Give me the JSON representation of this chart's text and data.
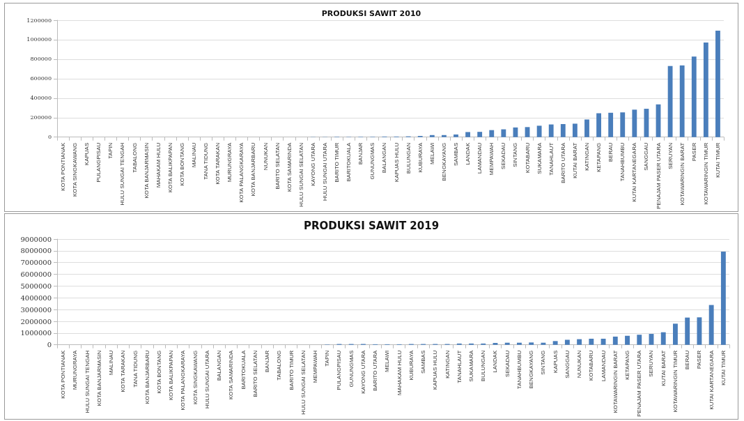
{
  "chart_data": [
    {
      "type": "bar",
      "title": "PRODUKSI SAWIT 2010",
      "categories": [
        "KOTA PONTIANAK",
        "KOTA SINGKAWANG",
        "KAPUAS",
        "PULANGPISAU",
        "TAPIN",
        "HULU SUNGAI TENGAH",
        "TABALONG",
        "KOTA BANJARMASIN",
        "MAHAKAM HULU",
        "KOTA BALIKPAPAN",
        "KOTA BONTANG",
        "MALINAU",
        "TANA TIDUNG",
        "KOTA TARAKAN",
        "MURUNGRAYA",
        "KOTA PALANGKARAYA",
        "KOTA BANJARBARU",
        "NUNUKAN",
        "BARITO SELATAN",
        "KOTA SAMARINDA",
        "HULU SUNGAI SELATAN",
        "KAYONG UTARA",
        "HULU SUNGAI UTARA",
        "BARITO TIMUR",
        "BARITOKUALA",
        "BANJAR",
        "GUNUNGMAS",
        "BALANGAN",
        "KAPUAS HULU",
        "BULUNGAN",
        "KUBURAYA",
        "MELAWI",
        "BENGKAYANG",
        "SAMBAS",
        "LANDAK",
        "LAMANDAU",
        "MEMPAWAH",
        "SEKADAU",
        "SINTANG",
        "KOTABARU",
        "SUKAMARA",
        "TANAHLAUT",
        "BARITO UTARA",
        "KUTAI BARAT",
        "KATINGAN",
        "KETAPANG",
        "BERAU",
        "TANAHBUMBU",
        "KUTAI KARTANEGARA",
        "SANGGAU",
        "PENAJAM PASER UTARA",
        "SERUYAN",
        "KOTAWARINGIN BARAT",
        "PASER",
        "KOTAWARINGIN TIMUR",
        "KUTAI TIMUR"
      ],
      "values": [
        0,
        0,
        0,
        0,
        0,
        0,
        0,
        0,
        0,
        0,
        0,
        0,
        0,
        0,
        0,
        0,
        0,
        0,
        0,
        0,
        0,
        2000,
        2000,
        4000,
        3000,
        4000,
        4000,
        6000,
        6000,
        8000,
        12000,
        21000,
        21000,
        27000,
        52000,
        54000,
        72000,
        80000,
        99000,
        103000,
        117000,
        130000,
        134000,
        138000,
        181000,
        245000,
        250000,
        254000,
        282000,
        291000,
        336000,
        730000,
        736000,
        827000,
        971000,
        1093000
      ],
      "color": "#4a7ebb",
      "ylim": [
        0,
        1200000
      ],
      "yticks": [
        0,
        200000,
        400000,
        600000,
        800000,
        1000000,
        1200000
      ],
      "grid": "y"
    },
    {
      "type": "bar",
      "title": "PRODUKSI SAWIT 2019",
      "categories": [
        "KOTA PONTIANAK",
        "MURUNGRAYA",
        "HULU SUNGAI TENGAH",
        "KOTA BANJARMASIN",
        "MALINAU",
        "KOTA TARAKAN",
        "TANA TIDUNG",
        "KOTA BANJARBARU",
        "KOTA BONTANG",
        "KOTA BALIKPAPAN",
        "KOTA PALANGKARAYA",
        "KOTA SINGKAWANG",
        "HULU SUNGAI UTARA",
        "BALANGAN",
        "KOTA SAMARINDA",
        "BARITOKUALA",
        "BARITO SELATAN",
        "BANJAR",
        "TABALONG",
        "BARITO TIMUR",
        "HULU SUNGAI SELATAN",
        "MEMPAWAH",
        "TAPIN",
        "PULANGPISAU",
        "GUNUNGMAS",
        "KAYONG UTARA",
        "BARITO UTARA",
        "MELAWI",
        "MAHAKAM HULU",
        "KUBURAYA",
        "SAMBAS",
        "KAPUAS HULU",
        "KATINGAN",
        "TANAHLAUT",
        "SUKAMARA",
        "BULUNGAN",
        "LANDAK",
        "SEKADAU",
        "TANAHBUMBU",
        "BENGKAYANG",
        "SINTANG",
        "KAPUAS",
        "SANGGAU",
        "NUNUKAN",
        "KOTABARU",
        "LAMANDAU",
        "KOTAWARINGIN BARAT",
        "KETAPANG",
        "PENAJAM PASER UTARA",
        "SERUYAN",
        "KUTAI BARAT",
        "KOTAWARINGIN TIMUR",
        "BERAU",
        "PASER",
        "KUTAI KARTANEGARA",
        "KUTAI TIMUR"
      ],
      "values": [
        0,
        0,
        0,
        0,
        0,
        0,
        0,
        0,
        0,
        0,
        0,
        0,
        0,
        0,
        0,
        0,
        0,
        0,
        0,
        0,
        0,
        0,
        30000,
        70000,
        70000,
        70000,
        50000,
        50000,
        50000,
        70000,
        70000,
        70000,
        70000,
        110000,
        110000,
        110000,
        160000,
        180000,
        180000,
        200000,
        180000,
        320000,
        430000,
        480000,
        520000,
        520000,
        700000,
        770000,
        860000,
        930000,
        1070000,
        1800000,
        2320000,
        2340000,
        3390000,
        7930000
      ],
      "color": "#4a7ebb",
      "ylim": [
        0,
        9000000
      ],
      "yticks": [
        0,
        1000000,
        2000000,
        3000000,
        4000000,
        5000000,
        6000000,
        7000000,
        8000000,
        9000000
      ],
      "grid": "y"
    }
  ]
}
